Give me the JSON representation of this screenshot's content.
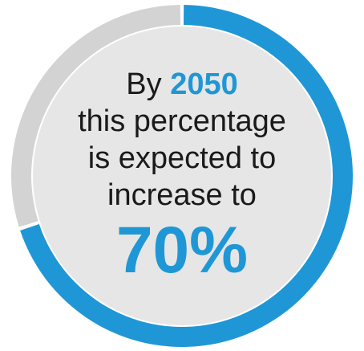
{
  "colors": {
    "accent": "#1f97d6",
    "track": "#d3d3d3",
    "inner": "#e6e6e6",
    "text": "#1a1a1a"
  },
  "text": {
    "line1_prefix": "By",
    "line1_year": "2050",
    "line2": "this percentage",
    "line3": "is expected to",
    "line4": "increase to",
    "big_value": "70%"
  },
  "chart_data": {
    "type": "pie",
    "categories": [
      "",
      ""
    ],
    "values": [
      70,
      30
    ],
    "title": "",
    "colors": [
      "#1f97d6",
      "#d3d3d3"
    ]
  }
}
